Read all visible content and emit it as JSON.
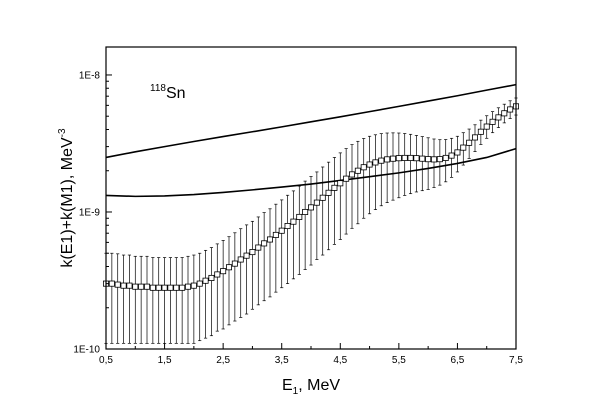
{
  "chart_data": {
    "type": "scatter",
    "xlabel": {
      "main": "E",
      "sub": "1",
      "rest": ", MeV"
    },
    "ylabel": {
      "main": "k(E1)+k(M1), MeV",
      "sup": "-3"
    },
    "annotation": {
      "sup": "118",
      "text": "Sn"
    },
    "xlim": [
      0.5,
      7.5
    ],
    "ylim": [
      1e-10,
      1.6e-08
    ],
    "yscale": "log",
    "x_ticks": [
      "0,5",
      "1,5",
      "2,5",
      "3,5",
      "4,5",
      "5,5",
      "6,5",
      "7,5"
    ],
    "x_tick_values": [
      0.5,
      1.5,
      2.5,
      3.5,
      4.5,
      5.5,
      6.5,
      7.5
    ],
    "x_minor_tick_values": [
      1.0,
      2.0,
      3.0,
      4.0,
      5.0,
      6.0,
      7.0
    ],
    "y_ticks": [
      "1E-10",
      "1E-9",
      "1E-8"
    ],
    "y_tick_values": [
      1e-10,
      1e-09,
      1e-08
    ],
    "grid": false,
    "series": [
      {
        "kind": "line",
        "x": [
          0.5,
          1.0,
          1.5,
          2.0,
          2.5,
          3.0,
          3.5,
          4.0,
          4.5,
          5.0,
          5.5,
          6.0,
          6.5,
          7.0,
          7.5
        ],
        "values": [
          2.5e-09,
          2.75e-09,
          3e-09,
          3.27e-09,
          3.55e-09,
          3.85e-09,
          4.18e-09,
          4.55e-09,
          4.95e-09,
          5.4e-09,
          5.9e-09,
          6.45e-09,
          7.05e-09,
          7.75e-09,
          8.5e-09
        ]
      },
      {
        "kind": "line",
        "x": [
          0.5,
          1.0,
          1.5,
          2.0,
          2.5,
          3.0,
          3.5,
          4.0,
          4.5,
          5.0,
          5.5,
          6.0,
          6.5,
          7.0,
          7.5
        ],
        "values": [
          1.32e-09,
          1.3e-09,
          1.31e-09,
          1.34e-09,
          1.39e-09,
          1.45e-09,
          1.52e-09,
          1.6e-09,
          1.7e-09,
          1.81e-09,
          1.93e-09,
          2.08e-09,
          2.26e-09,
          2.5e-09,
          2.9e-09
        ]
      },
      {
        "kind": "points-errorbars",
        "x": [
          0.5,
          0.6,
          0.7,
          0.8,
          0.9,
          1.0,
          1.1,
          1.2,
          1.3,
          1.4,
          1.5,
          1.6,
          1.7,
          1.8,
          1.9,
          2.0,
          2.1,
          2.2,
          2.3,
          2.4,
          2.5,
          2.6,
          2.7,
          2.8,
          2.9,
          3.0,
          3.1,
          3.2,
          3.3,
          3.4,
          3.5,
          3.6,
          3.7,
          3.8,
          3.9,
          4.0,
          4.1,
          4.2,
          4.3,
          4.4,
          4.5,
          4.6,
          4.7,
          4.8,
          4.9,
          5.0,
          5.1,
          5.2,
          5.3,
          5.4,
          5.5,
          5.6,
          5.7,
          5.8,
          5.9,
          6.0,
          6.1,
          6.2,
          6.3,
          6.4,
          6.5,
          6.6,
          6.7,
          6.8,
          6.9,
          7.0,
          7.1,
          7.2,
          7.3,
          7.4,
          7.5
        ],
        "values": [
          3e-10,
          3e-10,
          2.95e-10,
          2.9e-10,
          2.9e-10,
          2.85e-10,
          2.85e-10,
          2.85e-10,
          2.8e-10,
          2.8e-10,
          2.8e-10,
          2.8e-10,
          2.8e-10,
          2.8e-10,
          2.85e-10,
          2.9e-10,
          3e-10,
          3.15e-10,
          3.3e-10,
          3.5e-10,
          3.7e-10,
          3.95e-10,
          4.2e-10,
          4.5e-10,
          4.8e-10,
          5.1e-10,
          5.5e-10,
          5.9e-10,
          6.3e-10,
          6.8e-10,
          7.3e-10,
          7.9e-10,
          8.5e-10,
          9.2e-10,
          1e-09,
          1.08e-09,
          1.17e-09,
          1.27e-09,
          1.38e-09,
          1.5e-09,
          1.62e-09,
          1.75e-09,
          1.88e-09,
          2e-09,
          2.12e-09,
          2.22e-09,
          2.3e-09,
          2.37e-09,
          2.42e-09,
          2.45e-09,
          2.47e-09,
          2.48e-09,
          2.48e-09,
          2.47e-09,
          2.45e-09,
          2.43e-09,
          2.42e-09,
          2.43e-09,
          2.48e-09,
          2.58e-09,
          2.72e-09,
          2.95e-09,
          3.2e-09,
          3.5e-09,
          3.85e-09,
          4.2e-09,
          4.55e-09,
          4.9e-09,
          5.25e-09,
          5.6e-09,
          5.9e-09
        ],
        "err_lo": [
          1.9e-10,
          1.9e-10,
          1.85e-10,
          1.8e-10,
          1.8e-10,
          1.75e-10,
          1.75e-10,
          1.75e-10,
          1.7e-10,
          1.7e-10,
          1.7e-10,
          1.7e-10,
          1.7e-10,
          1.7e-10,
          1.75e-10,
          1.8e-10,
          1.85e-10,
          1.95e-10,
          2.05e-10,
          2.15e-10,
          2.3e-10,
          2.45e-10,
          2.6e-10,
          2.8e-10,
          3e-10,
          3.15e-10,
          3.4e-10,
          3.65e-10,
          3.9e-10,
          4.2e-10,
          4.5e-10,
          4.9e-10,
          5.25e-10,
          5.7e-10,
          6.2e-10,
          6.7e-10,
          7.2e-10,
          7.85e-10,
          8.5e-10,
          9.2e-10,
          9.9e-10,
          1.06e-09,
          1.12e-09,
          1.18e-09,
          1.22e-09,
          1.25e-09,
          1.26e-09,
          1.26e-09,
          1.25e-09,
          1.23e-09,
          1.2e-09,
          1.16e-09,
          1.12e-09,
          1.07e-09,
          1.02e-09,
          9.7e-10,
          9.1e-10,
          8.6e-10,
          8.2e-10,
          7.9e-10,
          7.6e-10,
          7.5e-10,
          7.4e-10,
          7.4e-10,
          7.4e-10,
          7.5e-10,
          7.6e-10,
          7.7e-10,
          7.8e-10,
          7.9e-10,
          8e-10
        ],
        "err_hi": [
          2e-10,
          2e-10,
          2e-10,
          1.95e-10,
          1.95e-10,
          1.9e-10,
          1.9e-10,
          1.9e-10,
          1.85e-10,
          1.85e-10,
          1.85e-10,
          1.85e-10,
          1.85e-10,
          1.85e-10,
          1.9e-10,
          1.95e-10,
          2e-10,
          2.1e-10,
          2.2e-10,
          2.35e-10,
          2.5e-10,
          2.65e-10,
          2.85e-10,
          3.05e-10,
          3.25e-10,
          3.45e-10,
          3.7e-10,
          4e-10,
          4.25e-10,
          4.6e-10,
          4.95e-10,
          5.35e-10,
          5.75e-10,
          6.25e-10,
          6.8e-10,
          7.35e-10,
          7.9e-10,
          8.6e-10,
          9.3e-10,
          1e-09,
          1.08e-09,
          1.15e-09,
          1.22e-09,
          1.28e-09,
          1.32e-09,
          1.35e-09,
          1.36e-09,
          1.36e-09,
          1.35e-09,
          1.33e-09,
          1.3e-09,
          1.26e-09,
          1.21e-09,
          1.15e-09,
          1.1e-09,
          1.05e-09,
          9.9e-10,
          9.4e-10,
          9e-10,
          8.7e-10,
          8.5e-10,
          8.4e-10,
          8.3e-10,
          8.3e-10,
          8.3e-10,
          8.4e-10,
          8.5e-10,
          8.6e-10,
          8.7e-10,
          8.8e-10,
          8.9e-10
        ],
        "marker": "open-square"
      }
    ]
  }
}
